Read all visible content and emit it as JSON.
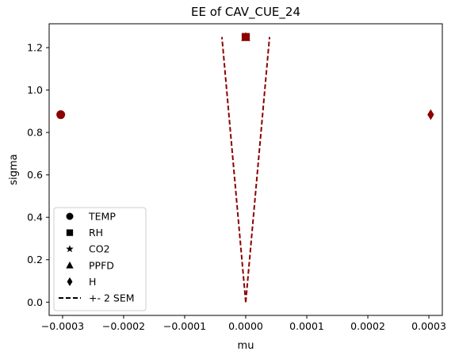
{
  "chart_data": {
    "type": "scatter",
    "title": "EE of CAV_CUE_24",
    "xlabel": "mu",
    "ylabel": "sigma",
    "xlim": [
      -0.000322,
      0.000322
    ],
    "ylim": [
      -0.0625,
      1.3125
    ],
    "xticks": [
      {
        "value": -0.0003,
        "label": "−0.0003"
      },
      {
        "value": -0.0002,
        "label": "−0.0002"
      },
      {
        "value": -0.0001,
        "label": "−0.0001"
      },
      {
        "value": 0.0,
        "label": "0.0000"
      },
      {
        "value": 0.0001,
        "label": "0.0001"
      },
      {
        "value": 0.0002,
        "label": "0.0002"
      },
      {
        "value": 0.0003,
        "label": "0.0003"
      }
    ],
    "yticks": [
      {
        "value": 0.0,
        "label": "0.0"
      },
      {
        "value": 0.2,
        "label": "0.2"
      },
      {
        "value": 0.4,
        "label": "0.4"
      },
      {
        "value": 0.6,
        "label": "0.6"
      },
      {
        "value": 0.8,
        "label": "0.8"
      },
      {
        "value": 1.0,
        "label": "1.0"
      },
      {
        "value": 1.2,
        "label": "1.2"
      }
    ],
    "grid": false,
    "legend_position": "lower-left",
    "marker_color": "#8b0000",
    "legend_marker_color": "#000000",
    "series": [
      {
        "name": "TEMP",
        "marker": "circle",
        "points": [
          {
            "x": -0.000303,
            "y": 0.884
          }
        ]
      },
      {
        "name": "RH",
        "marker": "square",
        "points": [
          {
            "x": 0.0,
            "y": 1.25
          }
        ]
      },
      {
        "name": "CO2",
        "marker": "star",
        "points": [
          {
            "x": 0.0,
            "y": 1.25
          }
        ]
      },
      {
        "name": "PPFD",
        "marker": "triangle",
        "points": [
          {
            "x": 0.0,
            "y": 1.25
          }
        ]
      },
      {
        "name": "H",
        "marker": "diamond",
        "points": [
          {
            "x": 0.000303,
            "y": 0.884
          }
        ]
      }
    ],
    "sem_lines": {
      "name": "+- 2 SEM",
      "style": "dashed",
      "color": "#8b0000",
      "lower": [
        {
          "x": 0.0,
          "y": 0.0
        },
        {
          "x": -3.9e-05,
          "y": 1.25
        }
      ],
      "upper": [
        {
          "x": 0.0,
          "y": 0.0
        },
        {
          "x": 3.9e-05,
          "y": 1.25
        }
      ]
    }
  }
}
